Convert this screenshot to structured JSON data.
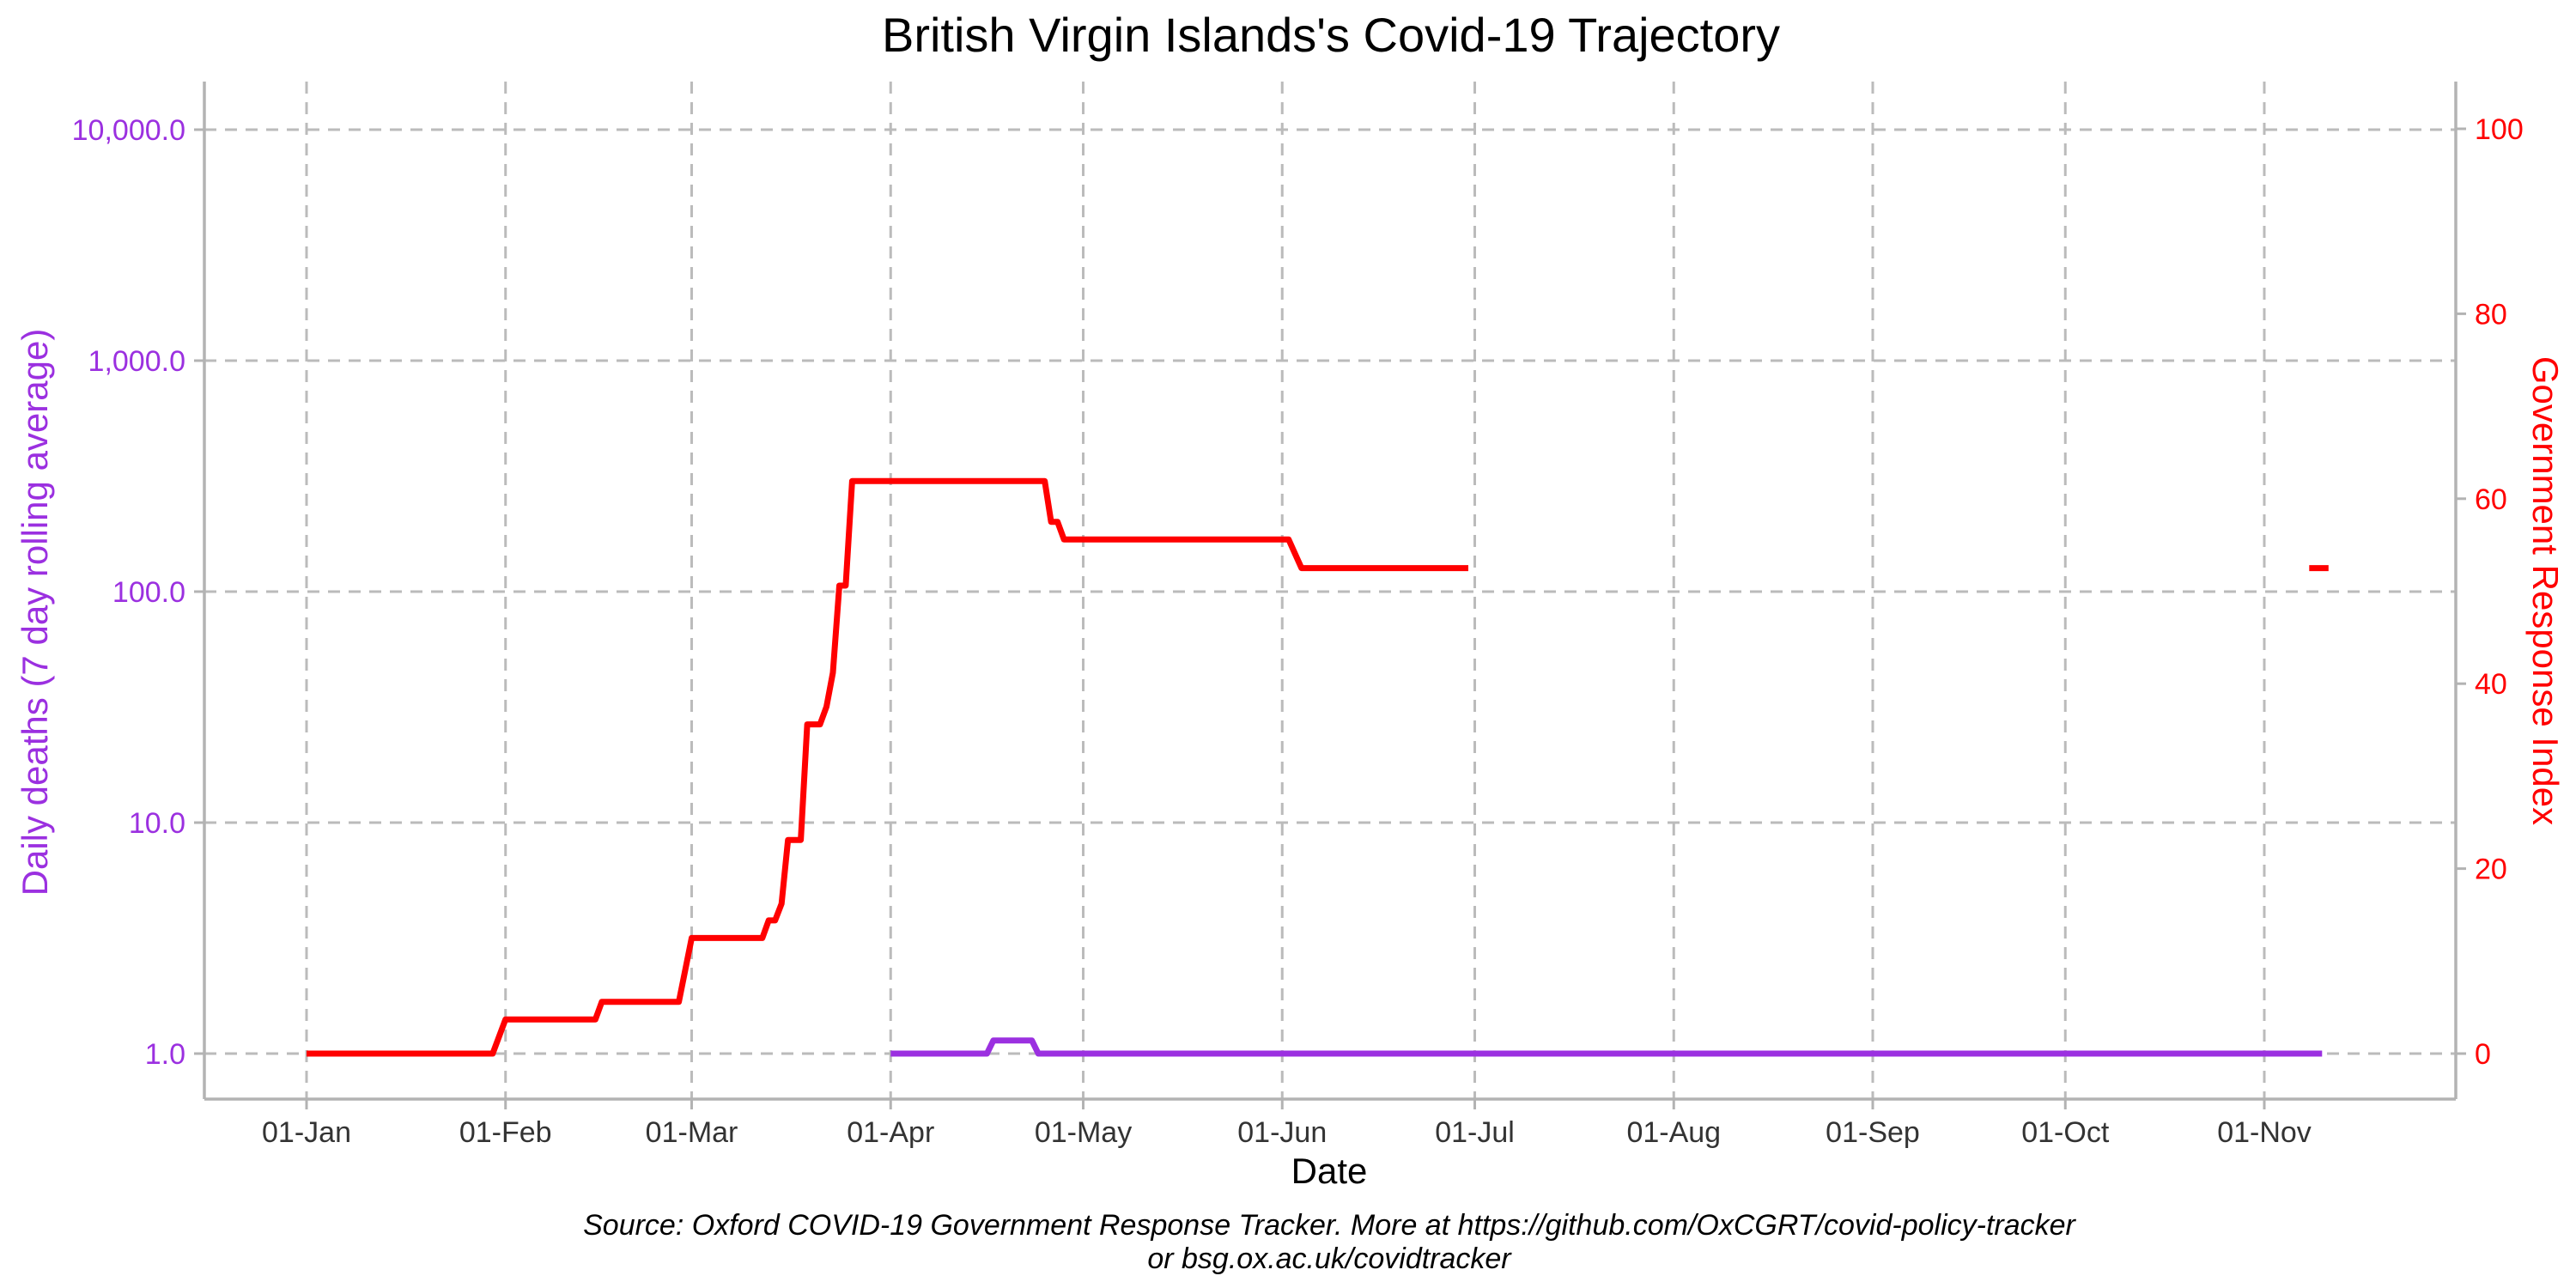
{
  "chart_data": {
    "type": "line",
    "title": "British Virgin Islands's Covid-19 Trajectory",
    "xlabel": "Date",
    "ylabel_left": "Daily deaths (7 day rolling average)",
    "ylabel_right": "Government Response Index",
    "caption_line1": "Source: Oxford COVID-19 Government Response Tracker. More at https://github.com/OxCGRT/covid-policy-tracker",
    "caption_line2": "or bsg.ox.ac.uk/covidtracker",
    "x_ticks": [
      "01-Jan",
      "01-Feb",
      "01-Mar",
      "01-Apr",
      "01-May",
      "01-Jun",
      "01-Jul",
      "01-Aug",
      "01-Sep",
      "01-Oct",
      "01-Nov"
    ],
    "y_left_scale": "log",
    "y_left_ticks": [
      "1.0",
      "10.0",
      "100.0",
      "1,000.0",
      "10,000.0"
    ],
    "y_left_tick_values": [
      1,
      10,
      100,
      1000,
      10000
    ],
    "y_right_ticks": [
      "0",
      "20",
      "40",
      "60",
      "80",
      "100"
    ],
    "y_right_tick_values": [
      0,
      20,
      40,
      60,
      80,
      100
    ],
    "y_right_range": [
      -5,
      105
    ],
    "grid": true,
    "colors": {
      "deaths": "#9b30e0",
      "gri": "#ff0000",
      "grid": "#bbbbbb",
      "axis": "#b3b3b3",
      "tick_text": "#333333"
    },
    "series": [
      {
        "axis": "right",
        "color": "#ff0000",
        "segments": [
          [
            [
              "2020-01-01",
              0
            ],
            [
              "2020-01-30",
              0
            ],
            [
              "2020-02-01",
              3.7
            ],
            [
              "2020-02-15",
              3.7
            ],
            [
              "2020-02-16",
              5.6
            ],
            [
              "2020-02-28",
              5.6
            ],
            [
              "2020-03-01",
              12.5
            ],
            [
              "2020-03-12",
              12.5
            ],
            [
              "2020-03-13",
              14.4
            ],
            [
              "2020-03-14",
              14.4
            ],
            [
              "2020-03-15",
              16.2
            ],
            [
              "2020-03-16",
              23.1
            ],
            [
              "2020-03-18",
              23.1
            ],
            [
              "2020-03-19",
              35.6
            ],
            [
              "2020-03-21",
              35.6
            ],
            [
              "2020-03-22",
              37.5
            ],
            [
              "2020-03-23",
              41.2
            ],
            [
              "2020-03-24",
              50.6
            ],
            [
              "2020-03-25",
              50.6
            ],
            [
              "2020-03-26",
              61.9
            ],
            [
              "2020-04-25",
              61.9
            ],
            [
              "2020-04-26",
              57.5
            ],
            [
              "2020-04-27",
              57.5
            ],
            [
              "2020-04-28",
              55.6
            ],
            [
              "2020-06-02",
              55.6
            ],
            [
              "2020-06-04",
              52.5
            ],
            [
              "2020-06-30",
              52.5
            ]
          ],
          [
            [
              "2020-11-08",
              52.5
            ],
            [
              "2020-11-11",
              52.5
            ]
          ]
        ]
      },
      {
        "axis": "left",
        "color": "#9b30e0",
        "segments": [
          [
            [
              "2020-04-01",
              1.0
            ],
            [
              "2020-04-16",
              1.0
            ],
            [
              "2020-04-17",
              1.14
            ],
            [
              "2020-04-23",
              1.14
            ],
            [
              "2020-04-24",
              1.0
            ],
            [
              "2020-11-10",
              1.0
            ]
          ]
        ]
      }
    ]
  }
}
